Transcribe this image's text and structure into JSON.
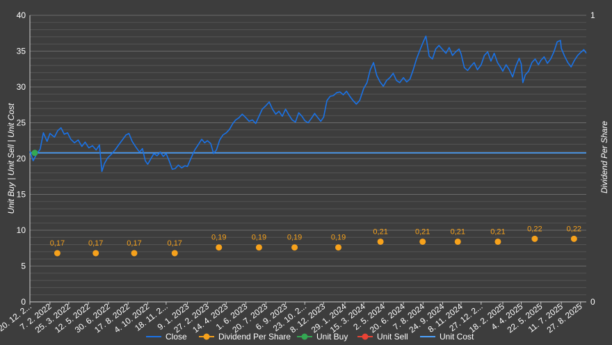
{
  "chart_data": {
    "type": "line",
    "title": "",
    "ylabel_left": "Unit Buy | Unit Sell | Unit Cost",
    "ylabel_right": "Dividend Per Share",
    "ylim_left": [
      0,
      40
    ],
    "ylim_right": [
      0,
      1
    ],
    "yticks_left": [
      "0",
      "5",
      "10",
      "15",
      "20",
      "25",
      "30",
      "35",
      "40"
    ],
    "yticks_right": [
      "0",
      "1"
    ],
    "grid": true,
    "legend_position": "bottom",
    "x_start": "2021-12-20",
    "x_end": "2025-09-10",
    "x_tick_labels": [
      {
        "label": "20. 12. 2...",
        "date": "2021-12-20"
      },
      {
        "label": "7. 2. 2022",
        "date": "2022-02-07"
      },
      {
        "label": "25. 3. 2022",
        "date": "2022-03-25"
      },
      {
        "label": "12. 5. 2022",
        "date": "2022-05-12"
      },
      {
        "label": "30. 6. 2022",
        "date": "2022-06-30"
      },
      {
        "label": "17. 8. 2022",
        "date": "2022-08-17"
      },
      {
        "label": "4. 10. 2022",
        "date": "2022-10-04"
      },
      {
        "label": "18. 11. 2...",
        "date": "2022-11-18"
      },
      {
        "label": "9. 1. 2023",
        "date": "2023-01-09"
      },
      {
        "label": "27. 2. 2023",
        "date": "2023-02-27"
      },
      {
        "label": "14. 4. 2023",
        "date": "2023-04-14"
      },
      {
        "label": "1. 6. 2023",
        "date": "2023-06-01"
      },
      {
        "label": "20. 7. 2023",
        "date": "2023-07-20"
      },
      {
        "label": "6. 9. 2023",
        "date": "2023-09-06"
      },
      {
        "label": "23. 10. 2...",
        "date": "2023-10-23"
      },
      {
        "label": "8. 12. 2023",
        "date": "2023-12-08"
      },
      {
        "label": "29. 1. 2024",
        "date": "2024-01-29"
      },
      {
        "label": "15. 3. 2024",
        "date": "2024-03-15"
      },
      {
        "label": "2. 5. 2024",
        "date": "2024-05-02"
      },
      {
        "label": "20. 6. 2024",
        "date": "2024-06-20"
      },
      {
        "label": "7. 8. 2024",
        "date": "2024-08-07"
      },
      {
        "label": "24. 9. 2024",
        "date": "2024-09-24"
      },
      {
        "label": "8. 11. 2024",
        "date": "2024-11-08"
      },
      {
        "label": "27. 12. 2...",
        "date": "2024-12-27"
      },
      {
        "label": "18. 2. 2025",
        "date": "2025-02-18"
      },
      {
        "label": "4. 4. 2025",
        "date": "2025-04-04"
      },
      {
        "label": "22. 5. 2025",
        "date": "2025-05-22"
      },
      {
        "label": "11. 7. 2025",
        "date": "2025-07-11"
      },
      {
        "label": "27. 8. 2025",
        "date": "2025-08-27"
      }
    ],
    "series": [
      {
        "name": "Close",
        "color": "#1a73e8",
        "axis": "left",
        "points": [
          [
            "2021-12-20",
            21.0
          ],
          [
            "2021-12-28",
            19.7
          ],
          [
            "2022-01-05",
            20.6
          ],
          [
            "2022-01-14",
            21.3
          ],
          [
            "2022-01-22",
            23.6
          ],
          [
            "2022-01-31",
            22.4
          ],
          [
            "2022-02-07",
            23.5
          ],
          [
            "2022-02-18",
            23.0
          ],
          [
            "2022-02-26",
            23.9
          ],
          [
            "2022-03-06",
            24.3
          ],
          [
            "2022-03-14",
            23.4
          ],
          [
            "2022-03-22",
            23.6
          ],
          [
            "2022-03-30",
            22.7
          ],
          [
            "2022-04-08",
            22.2
          ],
          [
            "2022-04-17",
            22.6
          ],
          [
            "2022-04-26",
            21.7
          ],
          [
            "2022-05-04",
            22.3
          ],
          [
            "2022-05-13",
            21.5
          ],
          [
            "2022-05-22",
            21.8
          ],
          [
            "2022-05-31",
            21.2
          ],
          [
            "2022-06-08",
            21.9
          ],
          [
            "2022-06-14",
            18.2
          ],
          [
            "2022-06-20",
            19.3
          ],
          [
            "2022-06-28",
            20.1
          ],
          [
            "2022-07-07",
            20.6
          ],
          [
            "2022-07-16",
            21.2
          ],
          [
            "2022-07-25",
            21.9
          ],
          [
            "2022-08-03",
            22.6
          ],
          [
            "2022-08-12",
            23.3
          ],
          [
            "2022-08-19",
            23.5
          ],
          [
            "2022-08-27",
            22.4
          ],
          [
            "2022-09-05",
            21.6
          ],
          [
            "2022-09-14",
            20.9
          ],
          [
            "2022-09-21",
            21.4
          ],
          [
            "2022-09-28",
            19.7
          ],
          [
            "2022-10-04",
            19.2
          ],
          [
            "2022-10-11",
            19.9
          ],
          [
            "2022-10-19",
            20.7
          ],
          [
            "2022-10-27",
            20.4
          ],
          [
            "2022-11-04",
            20.9
          ],
          [
            "2022-11-11",
            20.3
          ],
          [
            "2022-11-18",
            20.7
          ],
          [
            "2022-11-26",
            19.6
          ],
          [
            "2022-12-03",
            18.5
          ],
          [
            "2022-12-10",
            18.6
          ],
          [
            "2022-12-18",
            19.1
          ],
          [
            "2022-12-26",
            18.7
          ],
          [
            "2023-01-03",
            19.0
          ],
          [
            "2023-01-09",
            18.9
          ],
          [
            "2023-01-18",
            20.1
          ],
          [
            "2023-01-27",
            21.2
          ],
          [
            "2023-02-05",
            22.0
          ],
          [
            "2023-02-13",
            22.7
          ],
          [
            "2023-02-20",
            22.2
          ],
          [
            "2023-02-27",
            22.5
          ],
          [
            "2023-03-07",
            22.1
          ],
          [
            "2023-03-14",
            20.7
          ],
          [
            "2023-03-21",
            21.2
          ],
          [
            "2023-03-29",
            22.6
          ],
          [
            "2023-04-06",
            23.3
          ],
          [
            "2023-04-14",
            23.6
          ],
          [
            "2023-04-22",
            24.1
          ],
          [
            "2023-04-30",
            24.9
          ],
          [
            "2023-05-07",
            25.4
          ],
          [
            "2023-05-15",
            25.7
          ],
          [
            "2023-05-23",
            26.2
          ],
          [
            "2023-06-01",
            25.7
          ],
          [
            "2023-06-09",
            25.2
          ],
          [
            "2023-06-17",
            25.4
          ],
          [
            "2023-06-25",
            24.9
          ],
          [
            "2023-07-03",
            25.9
          ],
          [
            "2023-07-11",
            26.9
          ],
          [
            "2023-07-20",
            27.4
          ],
          [
            "2023-07-28",
            27.9
          ],
          [
            "2023-08-05",
            26.9
          ],
          [
            "2023-08-13",
            26.2
          ],
          [
            "2023-08-21",
            26.6
          ],
          [
            "2023-08-29",
            25.9
          ],
          [
            "2023-09-06",
            26.9
          ],
          [
            "2023-09-14",
            26.1
          ],
          [
            "2023-09-22",
            25.4
          ],
          [
            "2023-09-30",
            25.1
          ],
          [
            "2023-10-08",
            26.4
          ],
          [
            "2023-10-16",
            25.9
          ],
          [
            "2023-10-23",
            25.3
          ],
          [
            "2023-10-31",
            25.0
          ],
          [
            "2023-11-08",
            25.6
          ],
          [
            "2023-11-16",
            26.3
          ],
          [
            "2023-11-24",
            25.7
          ],
          [
            "2023-12-01",
            25.2
          ],
          [
            "2023-12-08",
            25.8
          ],
          [
            "2023-12-16",
            28.1
          ],
          [
            "2023-12-24",
            28.7
          ],
          [
            "2024-01-01",
            28.8
          ],
          [
            "2024-01-09",
            29.2
          ],
          [
            "2024-01-17",
            29.3
          ],
          [
            "2024-01-25",
            28.9
          ],
          [
            "2024-02-02",
            29.4
          ],
          [
            "2024-02-10",
            28.7
          ],
          [
            "2024-02-18",
            28.1
          ],
          [
            "2024-02-26",
            27.6
          ],
          [
            "2024-03-05",
            28.1
          ],
          [
            "2024-03-15",
            29.8
          ],
          [
            "2024-03-23",
            30.6
          ],
          [
            "2024-03-31",
            32.4
          ],
          [
            "2024-04-08",
            33.4
          ],
          [
            "2024-04-16",
            31.6
          ],
          [
            "2024-04-24",
            30.7
          ],
          [
            "2024-05-02",
            30.1
          ],
          [
            "2024-05-10",
            30.9
          ],
          [
            "2024-05-18",
            31.3
          ],
          [
            "2024-05-26",
            31.9
          ],
          [
            "2024-06-03",
            30.9
          ],
          [
            "2024-06-11",
            30.6
          ],
          [
            "2024-06-20",
            31.3
          ],
          [
            "2024-06-28",
            30.7
          ],
          [
            "2024-07-06",
            31.1
          ],
          [
            "2024-07-14",
            32.4
          ],
          [
            "2024-07-22",
            33.9
          ],
          [
            "2024-07-30",
            35.1
          ],
          [
            "2024-08-07",
            36.2
          ],
          [
            "2024-08-14",
            37.1
          ],
          [
            "2024-08-22",
            34.3
          ],
          [
            "2024-08-30",
            33.9
          ],
          [
            "2024-09-07",
            35.3
          ],
          [
            "2024-09-15",
            35.8
          ],
          [
            "2024-09-24",
            35.2
          ],
          [
            "2024-10-02",
            34.7
          ],
          [
            "2024-10-10",
            35.5
          ],
          [
            "2024-10-18",
            34.4
          ],
          [
            "2024-10-26",
            34.9
          ],
          [
            "2024-11-03",
            35.3
          ],
          [
            "2024-11-08",
            34.6
          ],
          [
            "2024-11-16",
            32.7
          ],
          [
            "2024-11-24",
            32.3
          ],
          [
            "2024-12-02",
            32.9
          ],
          [
            "2024-12-10",
            33.4
          ],
          [
            "2024-12-18",
            32.4
          ],
          [
            "2024-12-27",
            33.1
          ],
          [
            "2025-01-04",
            34.4
          ],
          [
            "2025-01-12",
            34.9
          ],
          [
            "2025-01-20",
            33.6
          ],
          [
            "2025-01-28",
            34.7
          ],
          [
            "2025-02-05",
            33.4
          ],
          [
            "2025-02-13",
            32.7
          ],
          [
            "2025-02-18",
            32.2
          ],
          [
            "2025-02-26",
            33.1
          ],
          [
            "2025-03-06",
            32.4
          ],
          [
            "2025-03-14",
            31.4
          ],
          [
            "2025-03-22",
            32.9
          ],
          [
            "2025-03-30",
            34.0
          ],
          [
            "2025-04-04",
            33.2
          ],
          [
            "2025-04-08",
            30.6
          ],
          [
            "2025-04-14",
            31.7
          ],
          [
            "2025-04-22",
            32.2
          ],
          [
            "2025-04-30",
            33.4
          ],
          [
            "2025-05-08",
            33.9
          ],
          [
            "2025-05-16",
            33.1
          ],
          [
            "2025-05-22",
            33.7
          ],
          [
            "2025-05-30",
            34.2
          ],
          [
            "2025-06-07",
            33.3
          ],
          [
            "2025-06-15",
            33.9
          ],
          [
            "2025-06-23",
            34.9
          ],
          [
            "2025-07-01",
            36.3
          ],
          [
            "2025-07-09",
            36.5
          ],
          [
            "2025-07-11",
            35.4
          ],
          [
            "2025-07-19",
            34.3
          ],
          [
            "2025-07-27",
            33.4
          ],
          [
            "2025-08-04",
            32.8
          ],
          [
            "2025-08-12",
            33.7
          ],
          [
            "2025-08-20",
            34.4
          ],
          [
            "2025-08-27",
            34.8
          ],
          [
            "2025-09-04",
            35.2
          ],
          [
            "2025-09-10",
            34.7
          ]
        ]
      },
      {
        "name": "Dividend Per Share",
        "color": "#f7a21c",
        "axis": "right",
        "points": [
          {
            "date": "2022-02-25",
            "value": 0.17,
            "label": "0,17"
          },
          {
            "date": "2022-05-30",
            "value": 0.17,
            "label": "0,17"
          },
          {
            "date": "2022-09-01",
            "value": 0.17,
            "label": "0,17"
          },
          {
            "date": "2022-12-09",
            "value": 0.17,
            "label": "0,17"
          },
          {
            "date": "2023-03-27",
            "value": 0.19,
            "label": "0,19"
          },
          {
            "date": "2023-07-03",
            "value": 0.19,
            "label": "0,19"
          },
          {
            "date": "2023-09-28",
            "value": 0.19,
            "label": "0,19"
          },
          {
            "date": "2024-01-13",
            "value": 0.19,
            "label": "0,19"
          },
          {
            "date": "2024-04-25",
            "value": 0.21,
            "label": "0,21"
          },
          {
            "date": "2024-08-06",
            "value": 0.21,
            "label": "0,21"
          },
          {
            "date": "2024-10-31",
            "value": 0.21,
            "label": "0,21"
          },
          {
            "date": "2025-02-06",
            "value": 0.21,
            "label": "0,21"
          },
          {
            "date": "2025-05-07",
            "value": 0.22,
            "label": "0,22"
          },
          {
            "date": "2025-08-11",
            "value": 0.22,
            "label": "0,22"
          }
        ]
      },
      {
        "name": "Unit Buy",
        "color": "#34a853",
        "axis": "left",
        "points": [
          [
            "2021-12-20",
            20.8
          ]
        ]
      },
      {
        "name": "Unit Sell",
        "color": "#ea4335",
        "axis": "left",
        "points": []
      },
      {
        "name": "Unit Cost",
        "color": "#4da3ff",
        "axis": "left",
        "points": [
          [
            "2021-12-20",
            20.8
          ],
          [
            "2025-09-10",
            20.8
          ]
        ]
      }
    ]
  }
}
